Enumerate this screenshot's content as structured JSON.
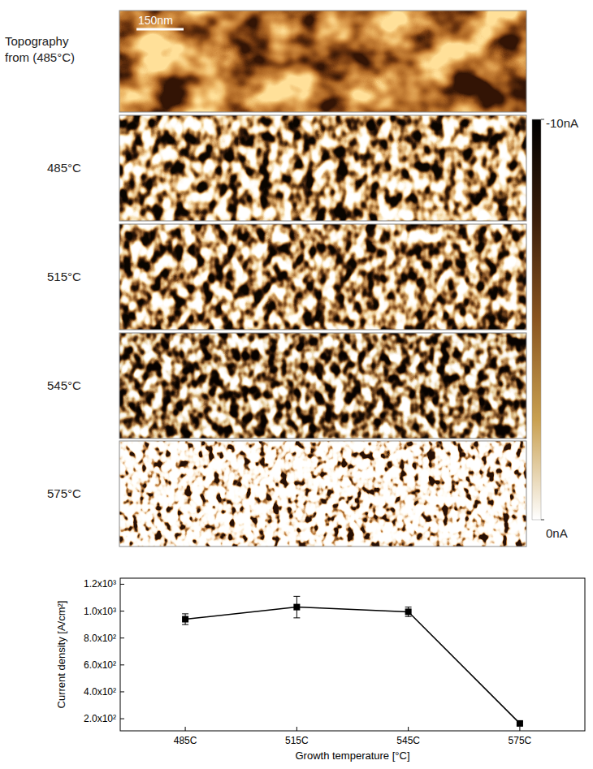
{
  "chart_data": {
    "type": "line",
    "categories": [
      "485C",
      "515C",
      "545C",
      "575C"
    ],
    "values": [
      940,
      1030,
      995,
      165
    ],
    "errors": [
      40,
      80,
      35,
      12
    ],
    "x_label": "Growth temperature [°C]",
    "y_label": "Current density [A/cm²]",
    "ylim": [
      110,
      1245
    ],
    "yticks": [
      {
        "value": 200,
        "label": "2.0x10²"
      },
      {
        "value": 400,
        "label": "4.0x10²"
      },
      {
        "value": 600,
        "label": "6.0x10²"
      },
      {
        "value": 800,
        "label": "8.0x10²"
      },
      {
        "value": 1000,
        "label": "1.0x10³"
      },
      {
        "value": 1200,
        "label": "1.2x10³"
      }
    ],
    "color": "#000000",
    "marker": "square",
    "line_style": "solid",
    "grid": false
  },
  "maps": {
    "topography_label": "Topography from (485°C)",
    "scale_bar": "150nm",
    "current_labels": [
      "485°C",
      "515°C",
      "545°C",
      "575°C"
    ],
    "colorbar": {
      "range": [
        -10,
        0
      ],
      "ticks": [
        {
          "value": -10,
          "label": "-10nA"
        },
        {
          "value": 0,
          "label": "0nA"
        }
      ]
    }
  }
}
